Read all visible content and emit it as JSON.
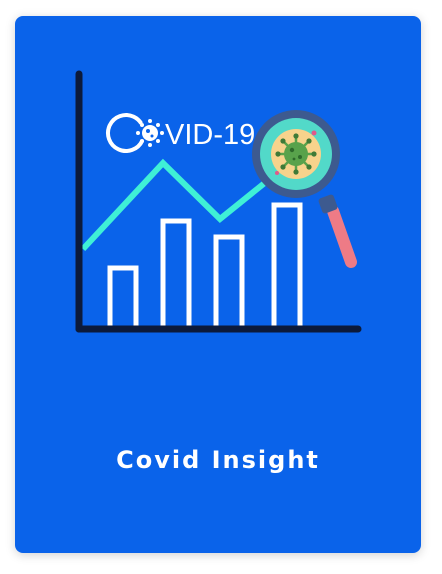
{
  "card": {
    "title": "Covid Insight",
    "background_color": "#0a63ea"
  },
  "illustration": {
    "logo_text": "VID-19",
    "logo_letter": "C",
    "colors": {
      "axis": "#0c1a3a",
      "trend_line": "#3ff0d6",
      "bars": "#ffffff",
      "lens_ring": "#3d5a8f",
      "lens_glass": "#52d9c9",
      "virus_backdrop": "#f7d38c",
      "virus": "#58a24b",
      "handle": "#ee7b86"
    },
    "icons": [
      "axis-icon",
      "bar-chart-icon",
      "trend-line-icon",
      "magnifier-icon",
      "virus-icon"
    ]
  }
}
